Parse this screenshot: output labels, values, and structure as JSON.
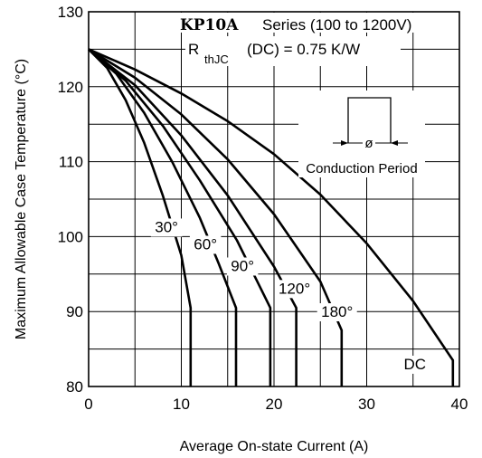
{
  "chart_data": {
    "type": "line",
    "title": "",
    "xlabel": "Average On-state Current (A)",
    "ylabel": "Maximum Allowable Case Temperature (°C)",
    "xlim": [
      0,
      40
    ],
    "ylim": [
      80,
      130
    ],
    "x_ticks": [
      "0",
      "10",
      "20",
      "30",
      "40"
    ],
    "y_ticks": [
      "80",
      "90",
      "100",
      "110",
      "120",
      "130"
    ],
    "grid": true,
    "annotations": {
      "series_name": "KP10A",
      "series_range": "Series (100 to 1200V)",
      "rth_symbol": "R",
      "rth_subscript": "thJC",
      "rth_value": "(DC) = 0.75 K/W",
      "inset_label": "Conduction Period",
      "inset_symbol": "ø"
    },
    "series": [
      {
        "name": "30°",
        "x": [
          0,
          2,
          4,
          6,
          8,
          10,
          11,
          11
        ],
        "y": [
          125,
          122.5,
          118.2,
          112.5,
          105.5,
          97.5,
          90.5,
          80
        ]
      },
      {
        "name": "60°",
        "x": [
          0,
          3,
          6,
          9,
          12,
          14,
          15.9,
          15.9
        ],
        "y": [
          125,
          121.7,
          116.5,
          110,
          102.5,
          96.5,
          90.5,
          80
        ]
      },
      {
        "name": "90°",
        "x": [
          0,
          4,
          8,
          12,
          16,
          18,
          19.6,
          19.6
        ],
        "y": [
          125,
          120.8,
          114.8,
          107.5,
          99.5,
          94.5,
          90.5,
          80
        ]
      },
      {
        "name": "120°",
        "x": [
          0,
          5,
          10,
          15,
          20,
          22.4,
          22.4
        ],
        "y": [
          125,
          120.2,
          113.5,
          105.5,
          96,
          90.5,
          80
        ]
      },
      {
        "name": "180°",
        "x": [
          0,
          5,
          10,
          15,
          20,
          25,
          27.3,
          27.3
        ],
        "y": [
          125,
          121.2,
          116.3,
          110.3,
          103,
          94,
          87.5,
          80
        ]
      },
      {
        "name": "DC",
        "x": [
          0,
          5,
          10,
          15,
          20,
          25,
          30,
          35,
          39.3,
          39.3
        ],
        "y": [
          125,
          122.3,
          119.1,
          115.4,
          111,
          105.6,
          99.1,
          91.4,
          83.5,
          80
        ]
      }
    ],
    "label_positions_data": [
      {
        "name": "30°",
        "x": 8.4,
        "y": 100.6
      },
      {
        "name": "60°",
        "x": 12.6,
        "y": 98.3
      },
      {
        "name": "90°",
        "x": 16.6,
        "y": 95.4
      },
      {
        "name": "120°",
        "x": 22.2,
        "y": 92.4
      },
      {
        "name": "180°",
        "x": 26.8,
        "y": 89.3
      },
      {
        "name": "DC",
        "x": 35.2,
        "y": 82.3
      }
    ]
  }
}
